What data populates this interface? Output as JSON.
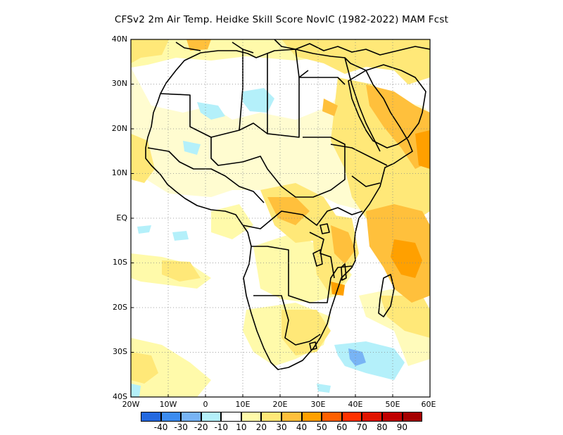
{
  "title": "CFSv2  2m Air Temp. Heidke Skill Score NovIC (1982-2022) MAM Fcst",
  "map": {
    "lat_labels": [
      "40N",
      "30N",
      "20N",
      "10N",
      "EQ",
      "10S",
      "20S",
      "30S",
      "40S"
    ],
    "lon_labels": [
      "20W",
      "10W",
      "0",
      "10E",
      "20E",
      "30E",
      "40E",
      "50E",
      "60E"
    ],
    "lon_range": [
      -20,
      60
    ],
    "lat_range": [
      -40,
      40
    ],
    "grid": "dotted"
  },
  "colorbar": {
    "colors": [
      "#2469e0",
      "#3c8cf0",
      "#78b4f5",
      "#b4f0fa",
      "#ffffff",
      "#fffaaa",
      "#ffe878",
      "#ffc03c",
      "#ffa000",
      "#ff6000",
      "#ff3200",
      "#e11400",
      "#c00000",
      "#a50000"
    ],
    "labels": [
      "-40",
      "-30",
      "-20",
      "-10",
      "10",
      "20",
      "30",
      "40",
      "50",
      "60",
      "70",
      "80",
      "90"
    ]
  }
}
